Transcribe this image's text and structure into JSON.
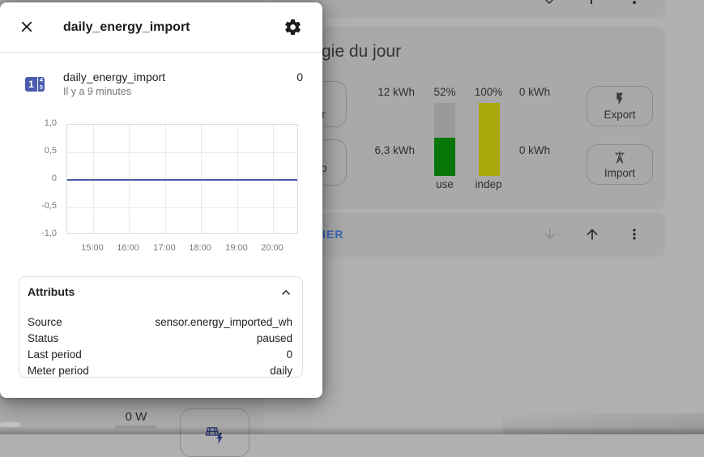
{
  "dialog": {
    "title": "daily_energy_import",
    "entity": {
      "name": "daily_energy_import",
      "last_changed": "Il y a 9 minutes",
      "state": "0"
    },
    "attributes": {
      "title": "Attributs",
      "rows": [
        {
          "label": "Source",
          "value": "sensor.energy_imported_wh"
        },
        {
          "label": "Status",
          "value": "paused"
        },
        {
          "label": "Last period",
          "value": "0"
        },
        {
          "label": "Meter period",
          "value": "daily"
        }
      ]
    }
  },
  "chart_data": {
    "type": "line",
    "x_ticks": [
      "15:00",
      "16:00",
      "17:00",
      "18:00",
      "19:00",
      "20:00"
    ],
    "y_ticks": [
      "1,0",
      "0,5",
      "0",
      "-0,5",
      "-1,0"
    ],
    "ylim": [
      -1.0,
      1.0
    ],
    "grid": true,
    "legend": "none",
    "series": [
      {
        "name": "daily_energy_import",
        "points": [
          {
            "x": "15:00",
            "y": 0
          },
          {
            "x": "16:00",
            "y": 0
          },
          {
            "x": "17:00",
            "y": 0
          },
          {
            "x": "18:00",
            "y": 0
          },
          {
            "x": "19:00",
            "y": 0
          },
          {
            "x": "20:00",
            "y": 0
          }
        ]
      }
    ]
  },
  "background": {
    "energy_card": {
      "heading": "gie du jour",
      "partial_button_labels": [
        "r",
        "o"
      ],
      "flows": {
        "left_top": "12 kWh",
        "left_bottom": "6,3 kWh",
        "right_top": "0 kWh",
        "right_bottom": "0 kWh"
      },
      "bars": [
        {
          "label": "use",
          "percent": "52%",
          "segments": [
            {
              "color_key": "bar_gray",
              "height_pct": 48
            },
            {
              "color_key": "bar_green",
              "height_pct": 52
            }
          ]
        },
        {
          "label": "indep",
          "percent": "100%",
          "segments": [
            {
              "color_key": "bar_yellow",
              "height_pct": 100
            }
          ]
        }
      ],
      "export_label": "Export",
      "import_label": "Import"
    },
    "toolbar": {
      "action_label": "IER"
    },
    "bottom": {
      "power_value": "0 W"
    }
  },
  "colors": {
    "dim_page": "#b0b0b0",
    "dim_card": "#a9a9a9",
    "dim_left_card": "#ababab",
    "btn_border": "#8d8d8d",
    "text_dark_dim": "#2e2e2e",
    "bar_gray": "#9a9a9a",
    "bar_green": "#077507",
    "bar_yellow": "#a9a70b",
    "chart_line": "#4a5aa7",
    "link_blue": "#3a66b8",
    "entity_icon_blue": "#4a5cad",
    "navy_icon": "#2e3b78"
  }
}
